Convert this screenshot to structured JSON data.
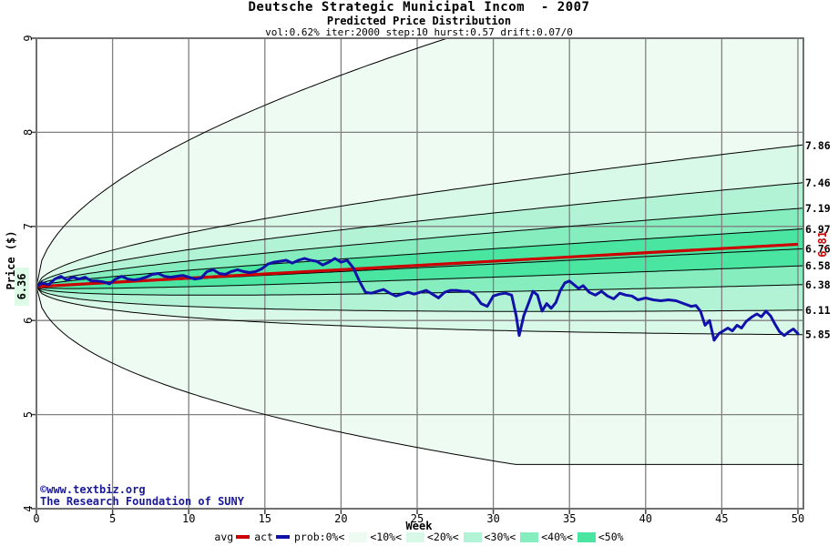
{
  "header": {
    "title": "Deutsche Strategic Municipal Incom  - 2007",
    "subtitle": "Predicted Price Distribution",
    "params": "vol:0.62% iter:2000 step:10 hurst:0.57 drift:0.07/0"
  },
  "footer": {
    "copyright_line1": "©www.textbiz.org",
    "copyright_line2": "The Research Foundation of SUNY"
  },
  "axes": {
    "y_label": "Price ($)",
    "x_label": "Week",
    "start_price_label": "6.36",
    "avg_end_label": "6.81"
  },
  "legend": {
    "items": [
      {
        "kind": "line",
        "label": "avg",
        "color": "#cc0000"
      },
      {
        "kind": "line",
        "label": "act",
        "color": "#1111aa"
      },
      {
        "kind": "text",
        "label": "prob:0%<"
      },
      {
        "kind": "box",
        "label": "<10%<",
        "color": "#edfbf2"
      },
      {
        "kind": "box",
        "label": "<20%<",
        "color": "#d8f8e8"
      },
      {
        "kind": "box",
        "label": "<30%<",
        "color": "#b2f3d5"
      },
      {
        "kind": "box",
        "label": "<40%<",
        "color": "#86edbf"
      },
      {
        "kind": "box",
        "label": "<50%",
        "color": "#4be5a2"
      }
    ]
  },
  "chart_data": {
    "type": "line",
    "title": "Deutsche Strategic Municipal Incom - 2007 Predicted Price Distribution",
    "xlabel": "Week",
    "ylabel": "Price ($)",
    "xlim": [
      0,
      50
    ],
    "ylim": [
      4,
      9
    ],
    "x_ticks": [
      0,
      5,
      10,
      15,
      20,
      25,
      30,
      35,
      40,
      45,
      50
    ],
    "y_ticks": [
      4,
      5,
      6,
      7,
      8,
      9
    ],
    "grid": true,
    "start_price": 6.36,
    "median_end": 6.76,
    "avg_end": 6.81,
    "percentile_lines": [
      {
        "name": "prob10-top",
        "end": 7.86
      },
      {
        "name": "prob20-top",
        "end": 7.46
      },
      {
        "name": "prob30-top",
        "end": 7.19
      },
      {
        "name": "prob40-top",
        "end": 6.97
      },
      {
        "name": "median",
        "end": 6.76
      },
      {
        "name": "prob40-bot",
        "end": 6.58
      },
      {
        "name": "prob30-bot",
        "end": 6.38
      },
      {
        "name": "prob20-bot",
        "end": 6.11
      },
      {
        "name": "prob10-bot",
        "end": 5.85
      }
    ],
    "envelope": {
      "top_dev": 3.3,
      "top_clamp": 9.05,
      "bot_dev": -2.7,
      "bot_floor": 4.47
    },
    "band_colors": [
      "#edfbf2",
      "#d8f8e8",
      "#b2f3d5",
      "#86edbf",
      "#4be5a2"
    ],
    "colors": {
      "avg_line": "#cc0000",
      "actual_line": "#1111aa",
      "grid": "#808080",
      "border": "#707070",
      "percentile_stroke": "#000000",
      "start_label_bg": "#ddfbe6"
    },
    "actual_series": [
      [
        0,
        6.36
      ],
      [
        0.4,
        6.4
      ],
      [
        0.8,
        6.38
      ],
      [
        1.2,
        6.44
      ],
      [
        1.6,
        6.47
      ],
      [
        2,
        6.43
      ],
      [
        2.4,
        6.46
      ],
      [
        2.8,
        6.44
      ],
      [
        3.2,
        6.46
      ],
      [
        3.6,
        6.42
      ],
      [
        4,
        6.42
      ],
      [
        4.4,
        6.41
      ],
      [
        4.8,
        6.39
      ],
      [
        5.2,
        6.44
      ],
      [
        5.6,
        6.47
      ],
      [
        6,
        6.44
      ],
      [
        6.4,
        6.43
      ],
      [
        6.8,
        6.44
      ],
      [
        7.2,
        6.46
      ],
      [
        7.6,
        6.49
      ],
      [
        8,
        6.5
      ],
      [
        8.4,
        6.47
      ],
      [
        8.8,
        6.46
      ],
      [
        9.2,
        6.47
      ],
      [
        9.6,
        6.48
      ],
      [
        10,
        6.46
      ],
      [
        10.4,
        6.44
      ],
      [
        10.8,
        6.45
      ],
      [
        11.2,
        6.52
      ],
      [
        11.6,
        6.54
      ],
      [
        12,
        6.5
      ],
      [
        12.4,
        6.49
      ],
      [
        12.8,
        6.52
      ],
      [
        13.2,
        6.54
      ],
      [
        13.6,
        6.52
      ],
      [
        14,
        6.51
      ],
      [
        14.4,
        6.52
      ],
      [
        14.8,
        6.55
      ],
      [
        15.2,
        6.6
      ],
      [
        15.6,
        6.62
      ],
      [
        16,
        6.63
      ],
      [
        16.4,
        6.64
      ],
      [
        16.8,
        6.61
      ],
      [
        17.2,
        6.64
      ],
      [
        17.6,
        6.66
      ],
      [
        18,
        6.64
      ],
      [
        18.4,
        6.63
      ],
      [
        18.8,
        6.59
      ],
      [
        19.2,
        6.62
      ],
      [
        19.6,
        6.66
      ],
      [
        20,
        6.62
      ],
      [
        20.4,
        6.64
      ],
      [
        20.8,
        6.56
      ],
      [
        21.2,
        6.42
      ],
      [
        21.6,
        6.3
      ],
      [
        22,
        6.29
      ],
      [
        22.4,
        6.31
      ],
      [
        22.8,
        6.33
      ],
      [
        23.2,
        6.29
      ],
      [
        23.6,
        6.26
      ],
      [
        24,
        6.28
      ],
      [
        24.4,
        6.3
      ],
      [
        24.8,
        6.28
      ],
      [
        25.2,
        6.3
      ],
      [
        25.6,
        6.32
      ],
      [
        26,
        6.28
      ],
      [
        26.4,
        6.24
      ],
      [
        26.8,
        6.3
      ],
      [
        27.2,
        6.32
      ],
      [
        27.6,
        6.32
      ],
      [
        28,
        6.31
      ],
      [
        28.4,
        6.31
      ],
      [
        28.8,
        6.27
      ],
      [
        29.2,
        6.18
      ],
      [
        29.6,
        6.15
      ],
      [
        30,
        6.26
      ],
      [
        30.4,
        6.28
      ],
      [
        30.8,
        6.29
      ],
      [
        31.2,
        6.27
      ],
      [
        31.5,
        6.05
      ],
      [
        31.7,
        5.84
      ],
      [
        32,
        6.05
      ],
      [
        32.3,
        6.18
      ],
      [
        32.6,
        6.31
      ],
      [
        32.9,
        6.27
      ],
      [
        33.2,
        6.1
      ],
      [
        33.5,
        6.18
      ],
      [
        33.8,
        6.13
      ],
      [
        34.1,
        6.19
      ],
      [
        34.4,
        6.32
      ],
      [
        34.7,
        6.4
      ],
      [
        35,
        6.42
      ],
      [
        35.3,
        6.38
      ],
      [
        35.6,
        6.34
      ],
      [
        35.9,
        6.37
      ],
      [
        36.3,
        6.3
      ],
      [
        36.7,
        6.27
      ],
      [
        37.1,
        6.31
      ],
      [
        37.5,
        6.26
      ],
      [
        37.9,
        6.23
      ],
      [
        38.3,
        6.29
      ],
      [
        38.7,
        6.27
      ],
      [
        39.1,
        6.26
      ],
      [
        39.5,
        6.22
      ],
      [
        40,
        6.24
      ],
      [
        40.5,
        6.22
      ],
      [
        41,
        6.21
      ],
      [
        41.5,
        6.22
      ],
      [
        42,
        6.21
      ],
      [
        42.5,
        6.18
      ],
      [
        43,
        6.15
      ],
      [
        43.3,
        6.16
      ],
      [
        43.6,
        6.1
      ],
      [
        43.9,
        5.95
      ],
      [
        44.2,
        6.0
      ],
      [
        44.5,
        5.79
      ],
      [
        44.8,
        5.86
      ],
      [
        45.1,
        5.89
      ],
      [
        45.4,
        5.92
      ],
      [
        45.7,
        5.89
      ],
      [
        46,
        5.95
      ],
      [
        46.3,
        5.92
      ],
      [
        46.6,
        5.99
      ],
      [
        47,
        6.04
      ],
      [
        47.3,
        6.07
      ],
      [
        47.6,
        6.04
      ],
      [
        47.9,
        6.1
      ],
      [
        48.2,
        6.05
      ],
      [
        48.5,
        5.96
      ],
      [
        48.8,
        5.88
      ],
      [
        49.1,
        5.84
      ],
      [
        49.4,
        5.88
      ],
      [
        49.7,
        5.91
      ],
      [
        50,
        5.86
      ]
    ]
  }
}
